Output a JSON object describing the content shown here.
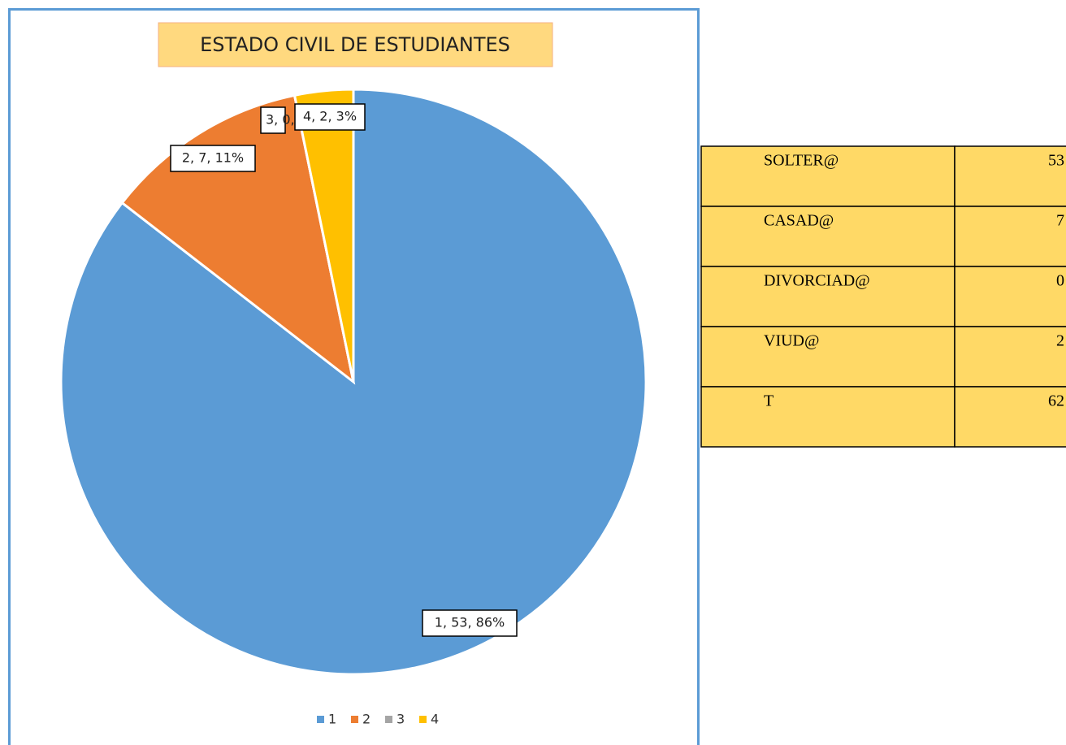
{
  "chart_data": {
    "type": "pie",
    "title": "ESTADO CIVIL DE ESTUDIANTES",
    "categories": [
      "1",
      "2",
      "3",
      "4"
    ],
    "values": [
      53,
      7,
      0,
      2
    ],
    "value_labels": [
      "1, 53, 86%",
      "2, 7, 11%",
      "3, 0, 0%",
      "4, 2, 3%"
    ],
    "colors": [
      "#5b9bd5",
      "#ed7d31",
      "#a5a5a5",
      "#ffc000"
    ],
    "legend": "bottom"
  },
  "table": {
    "rows": [
      [
        "SOLTER@",
        "53"
      ],
      [
        "CASAD@",
        "7"
      ],
      [
        "DIVORCIAD@",
        "0"
      ],
      [
        "VIUD@",
        "2"
      ],
      [
        "T",
        "62"
      ]
    ]
  }
}
